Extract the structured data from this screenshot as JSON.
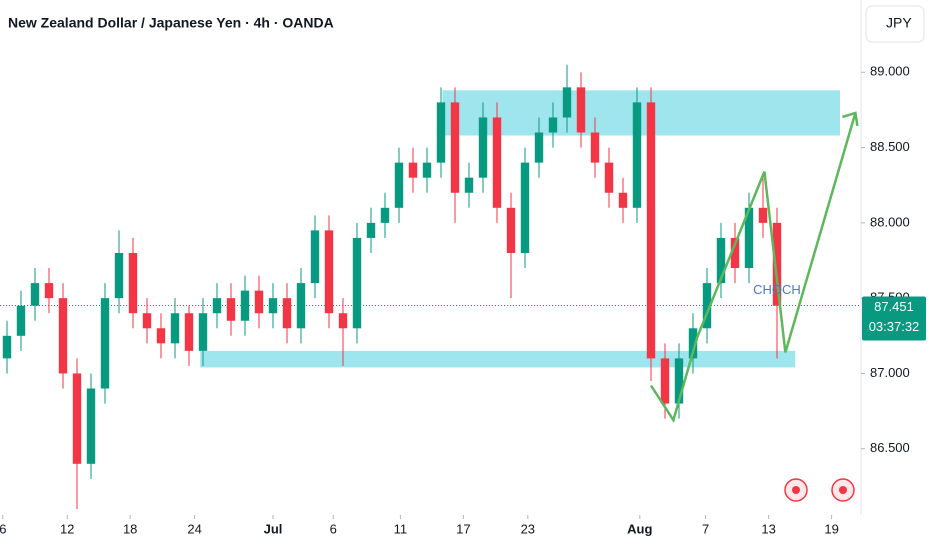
{
  "chart_data": {
    "type": "candlestick",
    "title": "New Zealand Dollar / Japanese Yen · 4h · OANDA",
    "currency": "JPY",
    "x": [
      0,
      1,
      2,
      3,
      4,
      5,
      6,
      7,
      8,
      9,
      10,
      11,
      12,
      13,
      14,
      15,
      16,
      17,
      18,
      19,
      20,
      21,
      22,
      23,
      24,
      25,
      26,
      27,
      28,
      29,
      30,
      31,
      32,
      33,
      34,
      35,
      36,
      37,
      38,
      39,
      40,
      41,
      42,
      43,
      44,
      45,
      46,
      47,
      48,
      49,
      50,
      51,
      52,
      53,
      54,
      55
    ],
    "open": [
      87.1,
      87.25,
      87.45,
      87.6,
      87.5,
      87.0,
      86.4,
      86.9,
      87.5,
      87.8,
      87.4,
      87.3,
      87.2,
      87.4,
      87.15,
      87.4,
      87.5,
      87.35,
      87.55,
      87.4,
      87.5,
      87.3,
      87.6,
      87.95,
      87.4,
      87.3,
      87.9,
      88.0,
      88.1,
      88.4,
      88.3,
      88.4,
      88.8,
      88.2,
      88.3,
      88.7,
      88.1,
      87.8,
      88.4,
      88.6,
      88.7,
      88.9,
      88.6,
      88.4,
      88.2,
      88.1,
      88.8,
      87.1,
      86.8,
      87.1,
      87.3,
      87.6,
      87.9,
      87.7,
      88.1,
      88.0
    ],
    "high": [
      87.35,
      87.55,
      87.7,
      87.7,
      87.6,
      87.1,
      87.0,
      87.6,
      87.95,
      87.9,
      87.5,
      87.4,
      87.5,
      87.45,
      87.5,
      87.6,
      87.6,
      87.65,
      87.65,
      87.6,
      87.6,
      87.7,
      88.05,
      88.05,
      87.5,
      88.0,
      88.1,
      88.2,
      88.5,
      88.5,
      88.5,
      88.9,
      88.9,
      88.4,
      88.8,
      88.8,
      88.2,
      88.5,
      88.7,
      88.8,
      89.05,
      89.0,
      88.7,
      88.5,
      88.3,
      88.9,
      88.9,
      87.2,
      87.2,
      87.4,
      87.7,
      88.0,
      88.0,
      88.2,
      88.3,
      88.1
    ],
    "low": [
      87.0,
      87.15,
      87.35,
      87.4,
      86.9,
      86.1,
      86.3,
      86.8,
      87.4,
      87.3,
      87.2,
      87.1,
      87.1,
      87.05,
      87.05,
      87.3,
      87.25,
      87.25,
      87.3,
      87.3,
      87.2,
      87.2,
      87.5,
      87.3,
      87.05,
      87.2,
      87.8,
      87.9,
      88.0,
      88.2,
      88.2,
      88.3,
      88.0,
      88.1,
      88.2,
      88.0,
      87.5,
      87.7,
      88.3,
      88.5,
      88.6,
      88.5,
      88.3,
      88.1,
      88.0,
      88.0,
      86.95,
      86.7,
      86.7,
      87.0,
      87.2,
      87.5,
      87.6,
      87.6,
      87.9,
      87.1
    ],
    "close": [
      87.25,
      87.45,
      87.6,
      87.5,
      87.0,
      86.4,
      86.9,
      87.5,
      87.8,
      87.4,
      87.3,
      87.2,
      87.4,
      87.15,
      87.4,
      87.5,
      87.35,
      87.55,
      87.4,
      87.5,
      87.3,
      87.6,
      87.95,
      87.4,
      87.3,
      87.9,
      88.0,
      88.1,
      88.4,
      88.3,
      88.4,
      88.8,
      88.2,
      88.3,
      88.7,
      88.1,
      87.8,
      88.4,
      88.6,
      88.7,
      88.9,
      88.6,
      88.4,
      88.2,
      88.1,
      88.8,
      87.1,
      86.8,
      87.1,
      87.3,
      87.6,
      87.9,
      87.7,
      88.1,
      88.0,
      87.45
    ],
    "up_color": "#089981",
    "down_color": "#f23645",
    "xlim": [
      -0.5,
      61
    ],
    "ylim": [
      86.06,
      89.48
    ],
    "xticks": [
      {
        "value": -0.3,
        "label": "6"
      },
      {
        "value": 4.3,
        "label": "12"
      },
      {
        "value": 8.8,
        "label": "18"
      },
      {
        "value": 13.4,
        "label": "24"
      },
      {
        "value": 19.0,
        "label": "Jul"
      },
      {
        "value": 23.3,
        "label": "6"
      },
      {
        "value": 28.1,
        "label": "11"
      },
      {
        "value": 32.6,
        "label": "17"
      },
      {
        "value": 37.2,
        "label": "23"
      },
      {
        "value": 45.2,
        "label": "Aug"
      },
      {
        "value": 49.9,
        "label": "7"
      },
      {
        "value": 54.4,
        "label": "13"
      },
      {
        "value": 58.9,
        "label": "19"
      }
    ],
    "yticks": [
      {
        "value": 86.5,
        "label": "86.500"
      },
      {
        "value": 87,
        "label": "87.000"
      },
      {
        "value": 87.5,
        "label": "87.500"
      },
      {
        "value": 88,
        "label": "88.000"
      },
      {
        "value": 88.5,
        "label": "88.500"
      },
      {
        "value": 89,
        "label": "89.000"
      }
    ],
    "last_price": 87.451,
    "countdown": "03:37:32",
    "zones": [
      {
        "x": [
          31.1,
          59.5
        ],
        "y": [
          88.58,
          88.88
        ],
        "color": "#9ee5ee"
      },
      {
        "x": [
          13.8,
          56.3
        ],
        "y": [
          87.04,
          87.15
        ],
        "color": "#9ee5ee"
      }
    ],
    "projection": {
      "x": [
        46.0,
        47.6,
        49.3,
        54.1,
        55.6,
        60.6
      ],
      "y": [
        86.92,
        86.69,
        87.24,
        88.34,
        87.14,
        88.73
      ],
      "color": "#5cb85c"
    },
    "annotation": {
      "text": "CHOCH",
      "x": 55.0,
      "y": 87.55,
      "color": "#4a78c8"
    }
  }
}
